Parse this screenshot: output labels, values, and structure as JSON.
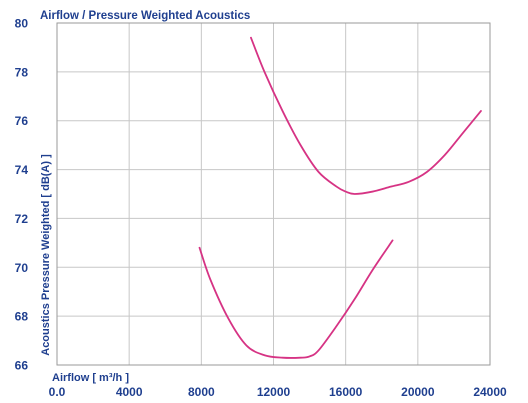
{
  "chart_data": {
    "type": "line",
    "title": "Airflow / Pressure Weighted Acoustics",
    "xlabel": "Airflow [ m³/h ]",
    "ylabel": "Acoustics Pressure Weighted [ dB(A) ]",
    "xlim": [
      0,
      24000
    ],
    "ylim": [
      66,
      80
    ],
    "x_ticks": [
      0,
      4000,
      8000,
      12000,
      16000,
      20000,
      24000
    ],
    "x_tick_labels": [
      "0.0",
      "4000",
      "8000",
      "12000",
      "16000",
      "20000",
      "24000"
    ],
    "y_ticks": [
      66,
      68,
      70,
      72,
      74,
      76,
      78,
      80
    ],
    "y_tick_labels": [
      "66",
      "68",
      "70",
      "72",
      "74",
      "76",
      "78",
      "80"
    ],
    "grid": true,
    "line_color": "#d63384",
    "series": [
      {
        "x": [
          10750,
          11500,
          12500,
          13500,
          14500,
          15500,
          16000,
          16500,
          17500,
          18500,
          19500,
          20500,
          21500,
          22500,
          23500
        ],
        "y": [
          79.4,
          78.0,
          76.4,
          75.0,
          73.9,
          73.3,
          73.1,
          73.0,
          73.1,
          73.3,
          73.5,
          73.9,
          74.6,
          75.5,
          76.4
        ]
      },
      {
        "x": [
          7900,
          8500,
          9500,
          10500,
          11500,
          12500,
          13500,
          14000,
          14500,
          15500,
          16500,
          17500,
          18600
        ],
        "y": [
          70.8,
          69.5,
          67.9,
          66.8,
          66.4,
          66.3,
          66.3,
          66.35,
          66.6,
          67.6,
          68.7,
          69.9,
          71.1
        ]
      }
    ]
  }
}
